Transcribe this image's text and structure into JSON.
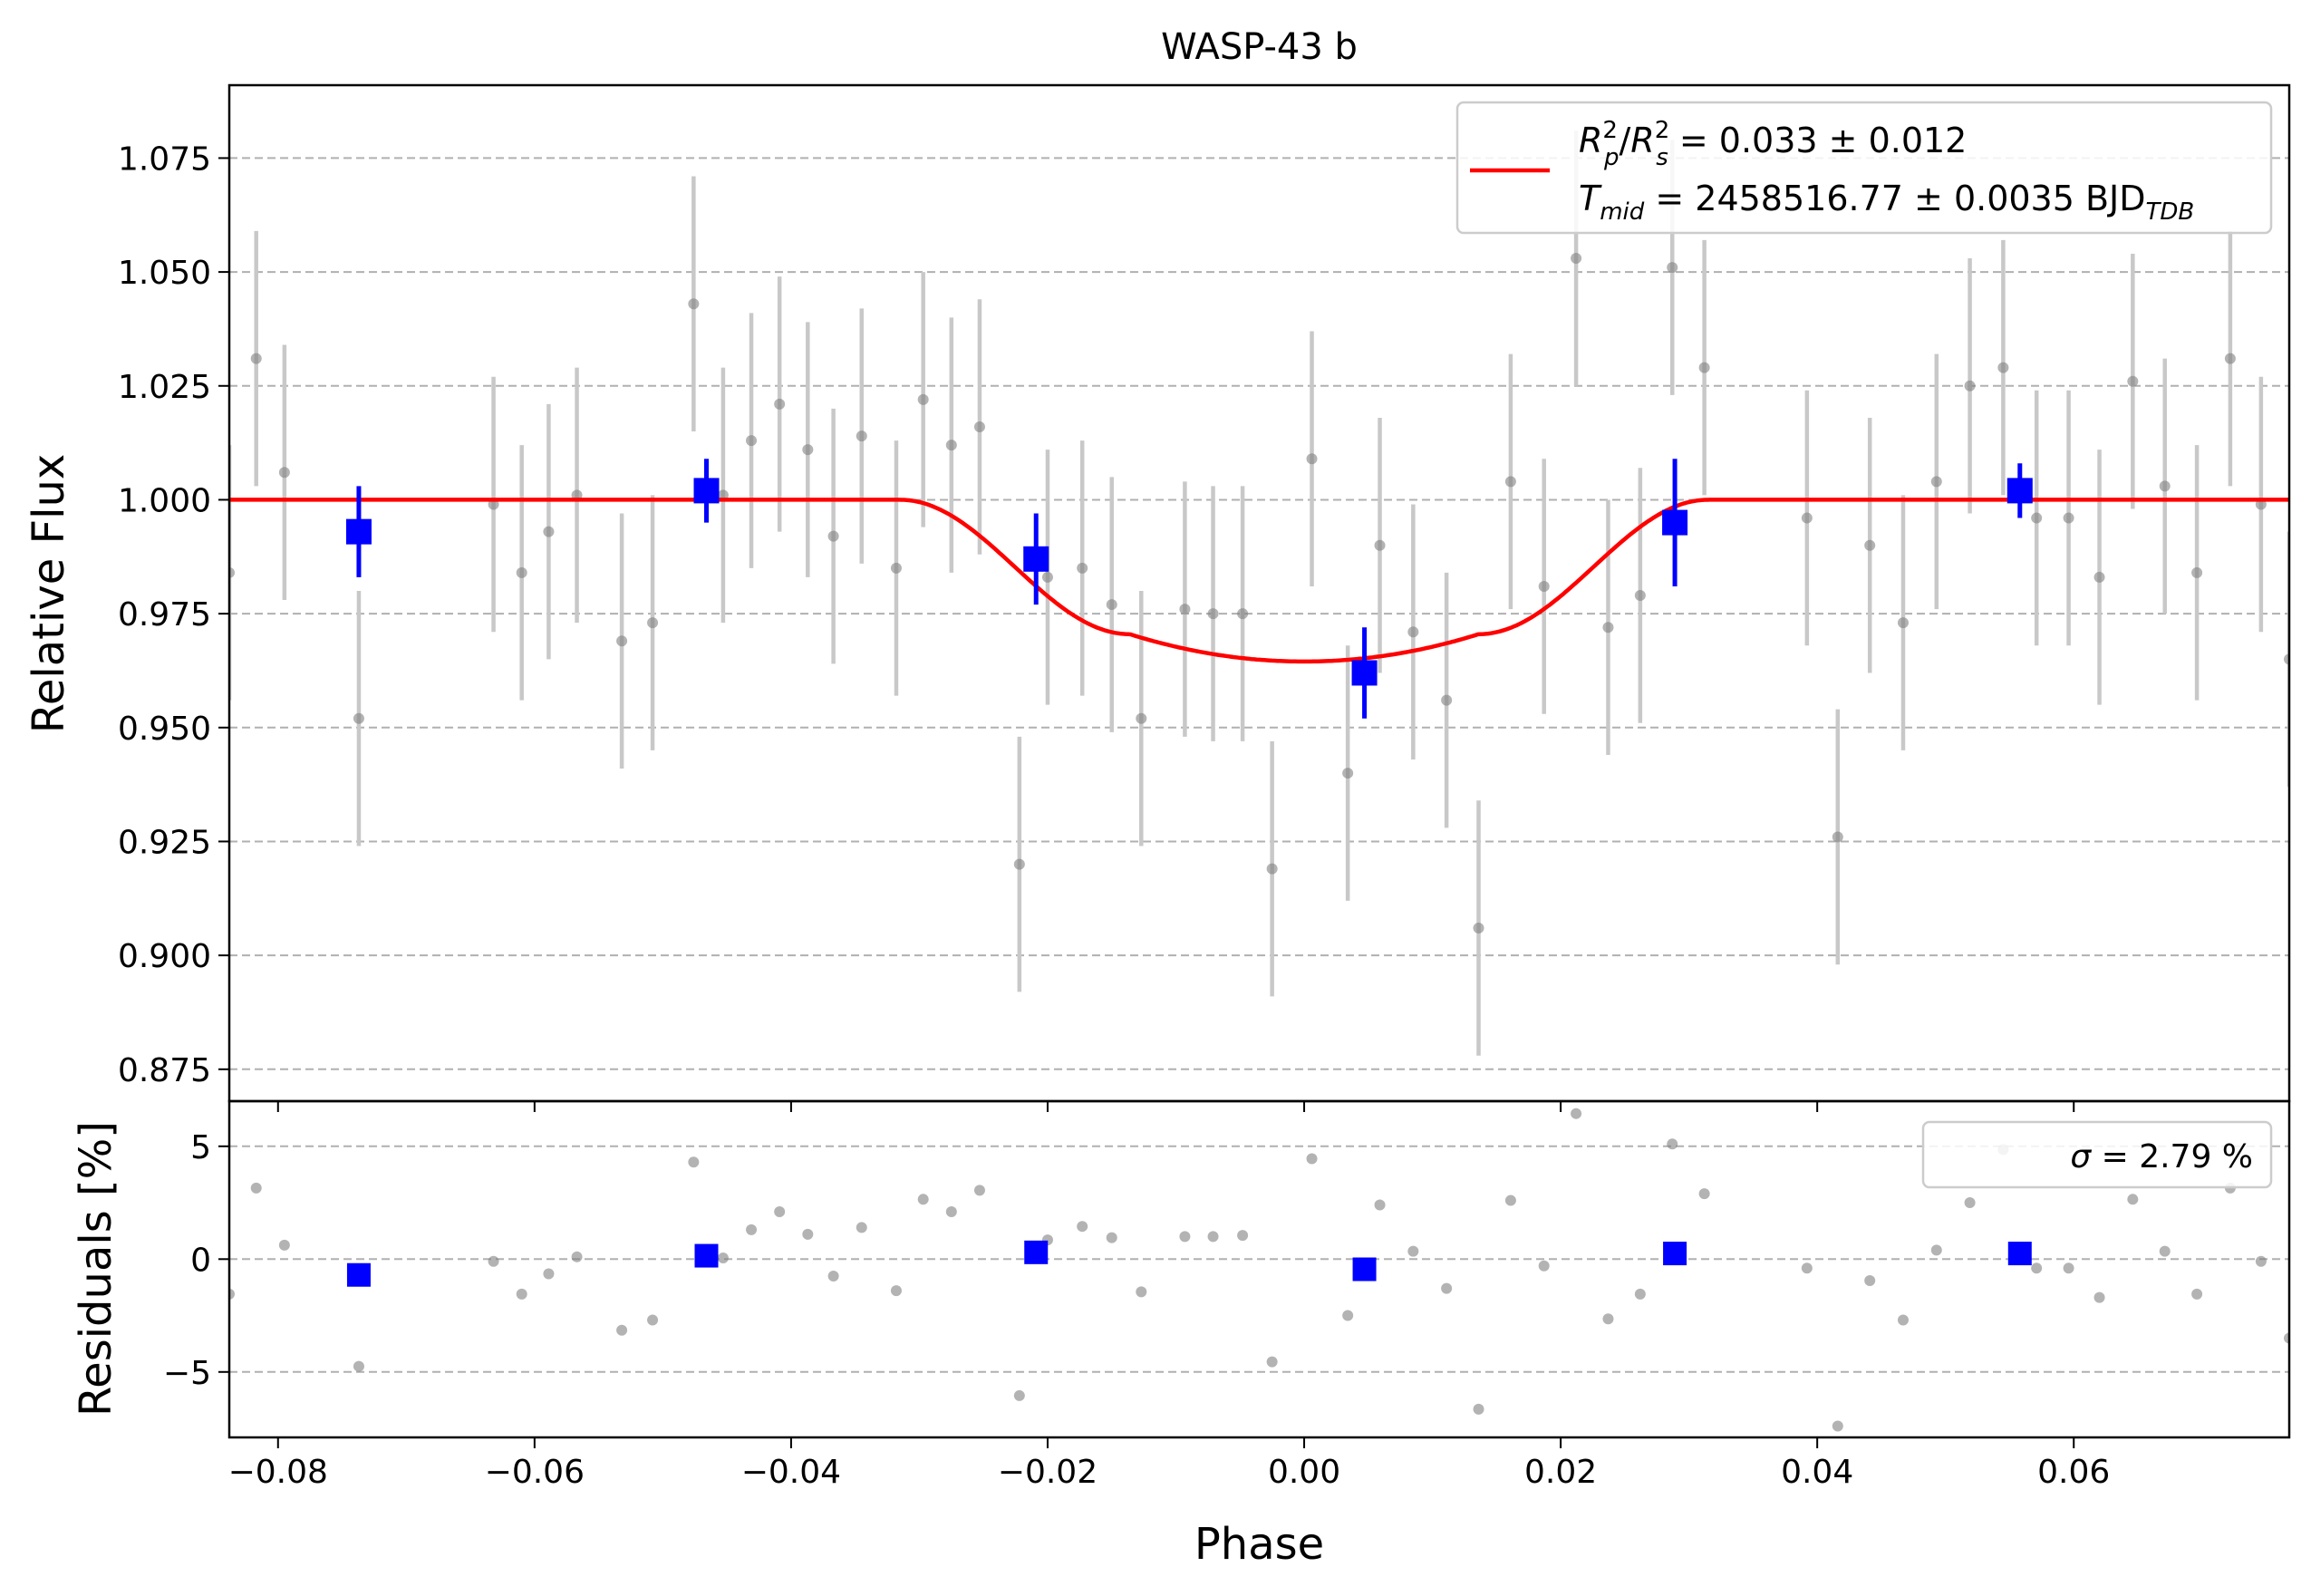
{
  "chart_data": [
    {
      "type": "scatter",
      "title": "WASP-43 b",
      "xlabel": "",
      "ylabel": "Relative Flux",
      "xlim": [
        -0.0838,
        0.0768
      ],
      "ylim": [
        0.868,
        1.091
      ],
      "xticks": [
        -0.08,
        -0.06,
        -0.04,
        -0.02,
        0.0,
        0.02,
        0.04,
        0.06
      ],
      "xtick_labels": [
        "−0.08",
        "−0.06",
        "−0.04",
        "−0.02",
        "0.00",
        "0.02",
        "0.04",
        "0.06"
      ],
      "yticks": [
        0.875,
        0.9,
        0.925,
        0.95,
        0.975,
        1.0,
        1.025,
        1.05,
        1.075
      ],
      "ytick_labels": [
        "0.875",
        "0.900",
        "0.925",
        "0.950",
        "0.975",
        "1.000",
        "1.025",
        "1.050",
        "1.075"
      ],
      "grid": "horizontal-dashed",
      "legend": {
        "placement": "top-right",
        "line1": {
          "r": "R",
          "p_sub": "p",
          "sup2": "2",
          "slash": "/",
          "s_sub": "s",
          "rest": " = 0.033 ± 0.012"
        },
        "line2": {
          "t": "T",
          "mid_sub": "mid",
          "rest": " = 2458516.77 ± 0.0035 BJD",
          "tdb_sub": "TDB"
        }
      },
      "colors": {
        "data": "#808080",
        "errorbar": "#c8c8c8",
        "binned": "#0000ff",
        "model": "#ff0000"
      },
      "series": [
        {
          "kind": "unbinned",
          "x": [
            -0.0838,
            -0.0817,
            -0.0795,
            -0.0737,
            -0.0632,
            -0.061,
            -0.0589,
            -0.0567,
            -0.0532,
            -0.0508,
            -0.0476,
            -0.0453,
            -0.0431,
            -0.0409,
            -0.0387,
            -0.0367,
            -0.0345,
            -0.0318,
            -0.0297,
            -0.0275,
            -0.0253,
            -0.0222,
            -0.02,
            -0.0173,
            -0.015,
            -0.0127,
            -0.0093,
            -0.0071,
            -0.0048,
            -0.0025,
            0.0006,
            0.0034,
            0.0059,
            0.0085,
            0.0111,
            0.0136,
            0.0161,
            0.0187,
            0.0212,
            0.0262,
            0.0237,
            0.0287,
            0.0312,
            0.0392,
            0.0416,
            0.0441,
            0.0467,
            0.0493,
            0.0519,
            0.0545,
            0.0571,
            0.0596,
            0.062,
            0.0646,
            0.0671,
            0.0696,
            0.0722,
            0.0746,
            0.0768
          ],
          "y": [
            0.984,
            1.031,
            1.006,
            0.952,
            0.999,
            0.984,
            0.993,
            1.001,
            0.969,
            0.973,
            1.043,
            1.001,
            1.013,
            1.021,
            1.011,
            0.992,
            1.014,
            0.985,
            1.022,
            1.012,
            1.016,
            0.92,
            0.983,
            0.985,
            0.977,
            0.952,
            0.976,
            0.975,
            0.975,
            0.919,
            1.009,
            0.94,
            0.99,
            0.971,
            0.956,
            0.906,
            1.004,
            0.981,
            1.053,
            0.979,
            0.972,
            1.051,
            1.029,
            0.996,
            0.926,
            0.99,
            0.973,
            1.004,
            1.025,
            1.029,
            0.996,
            0.996,
            0.983,
            1.026,
            1.003,
            0.984,
            1.031,
            0.999,
            0.965
          ],
          "yerr": 0.028
        },
        {
          "kind": "binned",
          "x": [
            -0.0737,
            -0.0466,
            -0.0209,
            0.0047,
            0.0289,
            0.0558
          ],
          "y": [
            0.993,
            1.002,
            0.987,
            0.962,
            0.995,
            1.002
          ],
          "yerr": [
            0.01,
            0.007,
            0.01,
            0.01,
            0.014,
            0.006
          ]
        },
        {
          "kind": "model",
          "depth": 0.0355,
          "t14": 0.063,
          "t23": 0.0272
        }
      ]
    },
    {
      "type": "scatter",
      "title": "",
      "xlabel": "Phase",
      "ylabel": "Residuals [%]",
      "xlim": [
        -0.0838,
        0.0768
      ],
      "ylim": [
        -7.9,
        7.0
      ],
      "yticks": [
        -5,
        0,
        5
      ],
      "ytick_labels": [
        "−5",
        "0",
        "5"
      ],
      "grid": "horizontal-dashed",
      "legend": {
        "placement": "top-right",
        "label_sigma": "σ",
        "label_rest": " = 2.79 %"
      },
      "series": [
        {
          "kind": "unbinned",
          "y": [
            -1.55,
            3.15,
            0.62,
            -4.75,
            -0.1,
            -1.55,
            -0.65,
            0.1,
            -3.15,
            -2.7,
            4.3,
            0.05,
            1.3,
            2.1,
            1.1,
            -0.75,
            1.4,
            -1.4,
            2.65,
            2.1,
            3.05,
            -6.05,
            0.85,
            1.45,
            0.95,
            -1.45,
            1.0,
            1.0,
            1.05,
            -4.55,
            4.45,
            -2.5,
            2.4,
            0.35,
            -1.3,
            -6.65,
            2.6,
            -0.3,
            6.45,
            -1.55,
            -2.65,
            5.1,
            2.9,
            -0.4,
            -7.4,
            -0.95,
            -2.7,
            0.4,
            2.5,
            4.85,
            -0.4,
            -0.4,
            -1.7,
            2.65,
            0.35,
            -1.55,
            3.15,
            -0.1,
            -3.5
          ]
        },
        {
          "kind": "binned",
          "y": [
            -0.7,
            0.15,
            0.3,
            -0.45,
            0.25,
            0.25
          ]
        }
      ]
    }
  ]
}
